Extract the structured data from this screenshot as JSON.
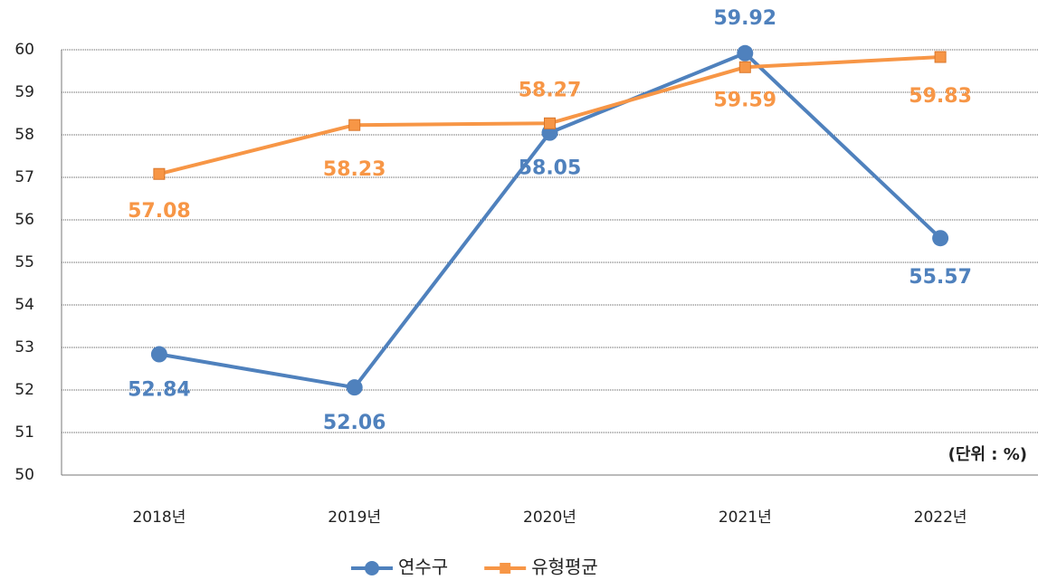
{
  "chart_data": {
    "type": "line",
    "categories": [
      "2018년",
      "2019년",
      "2020년",
      "2021년",
      "2022년"
    ],
    "series": [
      {
        "name": "연수구",
        "color": "#4f81bd",
        "marker": "circle",
        "values": [
          52.84,
          52.06,
          58.05,
          59.92,
          55.57
        ]
      },
      {
        "name": "유형평균",
        "color": "#f79646",
        "marker": "square",
        "values": [
          57.08,
          58.23,
          58.27,
          59.59,
          59.83
        ]
      }
    ],
    "ylim": [
      50,
      60
    ],
    "yticks": [
      50,
      51,
      52,
      53,
      54,
      55,
      56,
      57,
      58,
      59,
      60
    ],
    "grid": true,
    "legend": "bottom",
    "annotation": "(단위 : %)"
  }
}
